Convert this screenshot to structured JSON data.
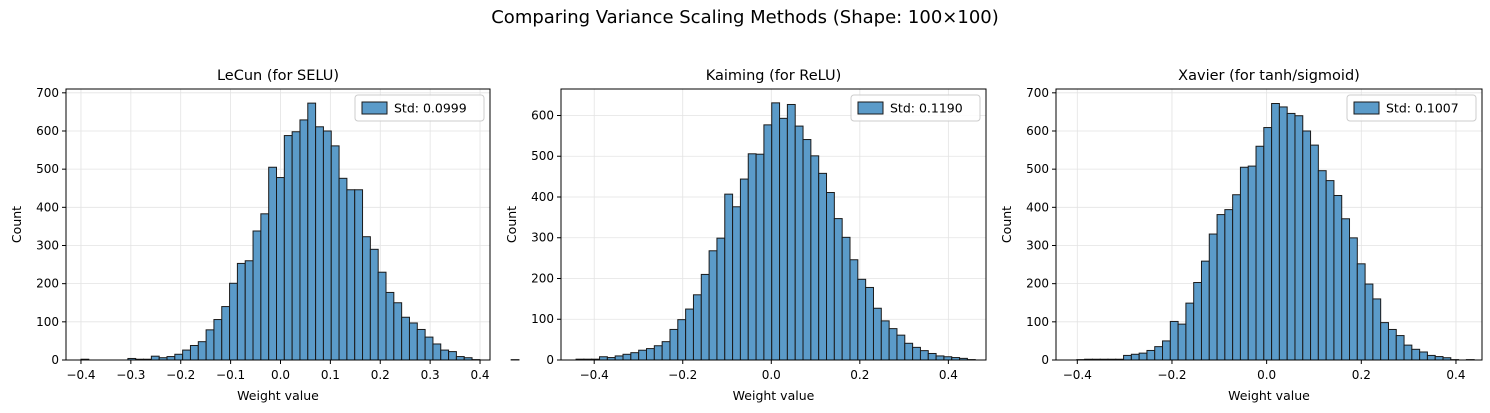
{
  "figure": {
    "title": "Comparing Variance Scaling Methods (Shape: 100×100)"
  },
  "style": {
    "bar_fill": "#5b9bc9",
    "bar_edge": "#1a1a1a",
    "grid_color": "#e3e3e3"
  },
  "chart_data": [
    {
      "type": "bar",
      "title": "LeCun (for SELU)",
      "xlabel": "Weight value",
      "ylabel": "Count",
      "xlim": [
        -0.43,
        0.42
      ],
      "ylim": [
        0,
        710
      ],
      "xticks": [
        -0.4,
        -0.3,
        -0.2,
        -0.1,
        0.0,
        0.1,
        0.2,
        0.3,
        0.4
      ],
      "xtick_labels": [
        "−0.4",
        "−0.3",
        "−0.2",
        "−0.1",
        "0.0",
        "0.1",
        "0.2",
        "0.3",
        "0.4"
      ],
      "yticks": [
        0,
        100,
        200,
        300,
        400,
        500,
        600,
        700
      ],
      "grid": true,
      "legend": {
        "label": "Std: 0.0999",
        "position": "top-right"
      },
      "bin_start": -0.4,
      "bin_width": 0.01568,
      "values": [
        2,
        0,
        0,
        0,
        0,
        0,
        4,
        2,
        2,
        10,
        6,
        9,
        15,
        26,
        38,
        48,
        79,
        106,
        140,
        201,
        253,
        260,
        338,
        383,
        505,
        478,
        588,
        598,
        629,
        673,
        611,
        600,
        561,
        476,
        446,
        446,
        323,
        290,
        230,
        177,
        150,
        112,
        97,
        80,
        60,
        42,
        26,
        22,
        9,
        6,
        1,
        0,
        0,
        0,
        0,
        1
      ]
    },
    {
      "type": "bar",
      "title": "Kaiming (for ReLU)",
      "xlabel": "Weight value",
      "ylabel": "Count",
      "xlim": [
        -0.475,
        0.485
      ],
      "ylim": [
        0,
        665
      ],
      "xticks": [
        -0.4,
        -0.2,
        0.0,
        0.2,
        0.4
      ],
      "xtick_labels": [
        "−0.4",
        "−0.2",
        "0.0",
        "0.2",
        "0.4"
      ],
      "yticks": [
        0,
        100,
        200,
        300,
        400,
        500,
        600
      ],
      "grid": true,
      "legend": {
        "label": "Std: 0.1190",
        "position": "top-right"
      },
      "bin_start": -0.441,
      "bin_width": 0.01768,
      "values": [
        2,
        2,
        2,
        8,
        6,
        10,
        14,
        18,
        24,
        28,
        35,
        45,
        75,
        99,
        125,
        160,
        210,
        268,
        299,
        407,
        376,
        444,
        506,
        505,
        577,
        631,
        593,
        627,
        574,
        541,
        501,
        458,
        411,
        347,
        301,
        246,
        198,
        178,
        127,
        96,
        77,
        61,
        41,
        31,
        23,
        16,
        10,
        8,
        6,
        4,
        1
      ]
    },
    {
      "type": "bar",
      "title": "Xavier (for tanh/sigmoid)",
      "xlabel": "Weight value",
      "ylabel": "Count",
      "xlim": [
        -0.445,
        0.455
      ],
      "ylim": [
        0,
        710
      ],
      "xticks": [
        -0.4,
        -0.2,
        0.0,
        0.2,
        0.4
      ],
      "xtick_labels": [
        "−0.4",
        "−0.2",
        "0.0",
        "0.2",
        "0.4"
      ],
      "yticks": [
        0,
        100,
        200,
        300,
        400,
        500,
        600,
        700
      ],
      "grid": true,
      "legend": {
        "label": "Std: 0.1007",
        "position": "top-right"
      },
      "bin_start": -0.401,
      "bin_width": 0.01646,
      "values": [
        1,
        2,
        2,
        2,
        2,
        2,
        12,
        15,
        18,
        25,
        35,
        50,
        101,
        94,
        149,
        203,
        259,
        330,
        381,
        394,
        433,
        505,
        508,
        560,
        609,
        672,
        663,
        646,
        640,
        600,
        563,
        496,
        470,
        431,
        370,
        320,
        252,
        199,
        160,
        98,
        80,
        64,
        39,
        28,
        21,
        12,
        9,
        6,
        1,
        0,
        1,
        0,
        0,
        0,
        0,
        3
      ]
    }
  ]
}
